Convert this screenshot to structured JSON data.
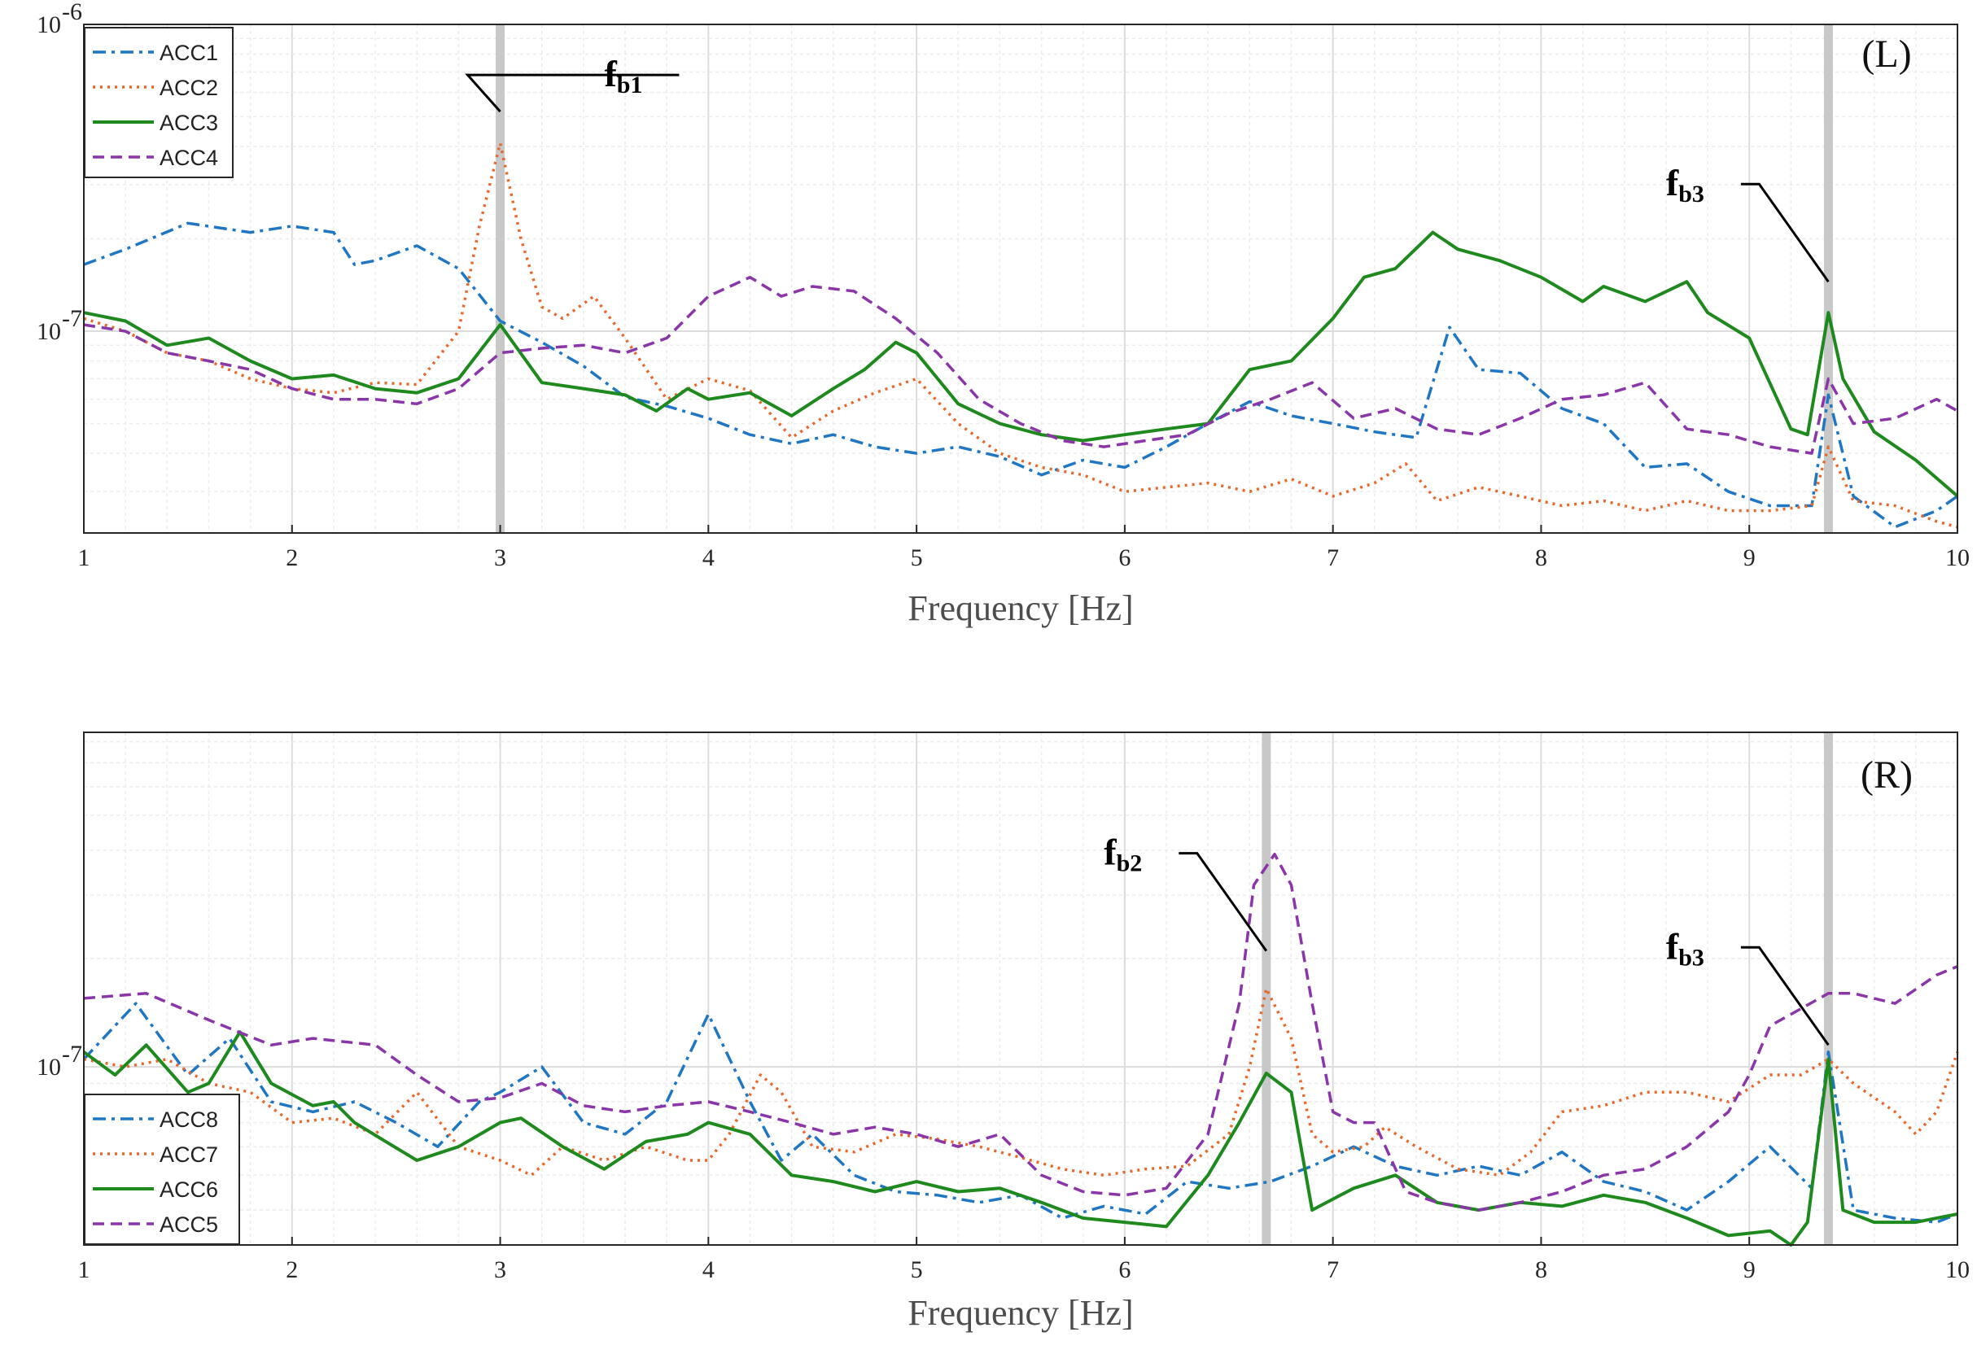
{
  "colors": {
    "blue": "#1f77c4",
    "orange": "#e8672a",
    "green": "#1e8a1e",
    "purple": "#8a35a8",
    "grid_major": "#dcdcdc",
    "grid_minor": "#ececec",
    "marker": "#c8c8c8",
    "axis": "#262626"
  },
  "chart_data": [
    {
      "type": "line",
      "panel": "top",
      "label": "(L)",
      "xlabel": "Frequency [Hz]",
      "ylabel": "",
      "xlim": [
        1,
        10
      ],
      "ylim": [
        2.2e-08,
        1e-06
      ],
      "yscale": "log",
      "xticks": [
        "1",
        "2",
        "3",
        "4",
        "5",
        "6",
        "7",
        "8",
        "9",
        "10"
      ],
      "yticks": [
        {
          "base": "10",
          "exp": "-6"
        },
        {
          "base": "10",
          "exp": "-7"
        }
      ],
      "legend": [
        "ACC1",
        "ACC2",
        "ACC3",
        "ACC4"
      ],
      "markers": [
        3.0,
        9.38
      ],
      "annotations": [
        {
          "main": "f",
          "sub": "b1",
          "x": 3.0,
          "y": 5.2e-07,
          "text_x": 3.5
        },
        {
          "main": "f",
          "sub": "b3",
          "x": 9.38,
          "y": 1.45e-07,
          "text_x": 8.6
        }
      ],
      "series": [
        {
          "name": "ACC1",
          "color_key": "blue",
          "dash": "16 7 4 7",
          "x": [
            1.0,
            1.2,
            1.5,
            1.8,
            2.0,
            2.2,
            2.3,
            2.4,
            2.6,
            2.8,
            3.0,
            3.2,
            3.4,
            3.6,
            3.8,
            4.0,
            4.2,
            4.4,
            4.6,
            4.8,
            5.0,
            5.2,
            5.4,
            5.6,
            5.8,
            6.0,
            6.2,
            6.4,
            6.6,
            6.8,
            7.0,
            7.2,
            7.4,
            7.56,
            7.7,
            7.9,
            8.1,
            8.3,
            8.5,
            8.7,
            8.9,
            9.1,
            9.3,
            9.38,
            9.5,
            9.7,
            9.9,
            10.0
          ],
          "y": [
            1.65e-07,
            1.85e-07,
            2.25e-07,
            2.1e-07,
            2.2e-07,
            2.1e-07,
            1.65e-07,
            1.7e-07,
            1.9e-07,
            1.6e-07,
            1.08e-07,
            9.2e-08,
            7.7e-08,
            6.1e-08,
            5.7e-08,
            5.2e-08,
            4.6e-08,
            4.3e-08,
            4.6e-08,
            4.2e-08,
            4e-08,
            4.2e-08,
            3.9e-08,
            3.4e-08,
            3.8e-08,
            3.6e-08,
            4.2e-08,
            5e-08,
            5.9e-08,
            5.3e-08,
            5e-08,
            4.7e-08,
            4.5e-08,
            1.03e-07,
            7.5e-08,
            7.3e-08,
            5.6e-08,
            5e-08,
            3.6e-08,
            3.7e-08,
            3e-08,
            2.7e-08,
            2.7e-08,
            6.2e-08,
            2.9e-08,
            2.3e-08,
            2.6e-08,
            2.9e-08
          ]
        },
        {
          "name": "ACC2",
          "color_key": "orange",
          "dash": "3 6",
          "x": [
            1.0,
            1.2,
            1.4,
            1.6,
            1.8,
            2.0,
            2.2,
            2.4,
            2.6,
            2.8,
            2.9,
            3.0,
            3.1,
            3.2,
            3.3,
            3.45,
            3.6,
            3.8,
            4.0,
            4.2,
            4.4,
            4.6,
            4.8,
            5.0,
            5.2,
            5.4,
            5.6,
            5.8,
            6.0,
            6.2,
            6.4,
            6.6,
            6.8,
            7.0,
            7.2,
            7.35,
            7.5,
            7.7,
            7.9,
            8.1,
            8.3,
            8.5,
            8.7,
            8.9,
            9.1,
            9.3,
            9.38,
            9.5,
            9.7,
            9.9,
            10.0
          ],
          "y": [
            1.1e-07,
            1e-07,
            8.5e-08,
            8e-08,
            7e-08,
            6.5e-08,
            6.3e-08,
            6.8e-08,
            6.7e-08,
            1e-07,
            2.2e-07,
            4.1e-07,
            2e-07,
            1.2e-07,
            1.1e-07,
            1.3e-07,
            9.5e-08,
            6e-08,
            7e-08,
            6.4e-08,
            4.5e-08,
            5.5e-08,
            6.3e-08,
            7e-08,
            5e-08,
            4e-08,
            3.6e-08,
            3.4e-08,
            3e-08,
            3.1e-08,
            3.2e-08,
            3e-08,
            3.3e-08,
            2.9e-08,
            3.2e-08,
            3.7e-08,
            2.8e-08,
            3.1e-08,
            2.9e-08,
            2.7e-08,
            2.8e-08,
            2.6e-08,
            2.8e-08,
            2.6e-08,
            2.6e-08,
            2.7e-08,
            4.2e-08,
            2.8e-08,
            2.7e-08,
            2.4e-08,
            2.3e-08
          ]
        },
        {
          "name": "ACC3",
          "color_key": "green",
          "dash": "",
          "x": [
            1.0,
            1.2,
            1.4,
            1.6,
            1.8,
            2.0,
            2.2,
            2.4,
            2.6,
            2.8,
            3.0,
            3.2,
            3.4,
            3.6,
            3.75,
            3.9,
            4.0,
            4.2,
            4.4,
            4.6,
            4.75,
            4.9,
            5.0,
            5.2,
            5.4,
            5.6,
            5.8,
            6.0,
            6.2,
            6.4,
            6.6,
            6.8,
            7.0,
            7.15,
            7.3,
            7.48,
            7.6,
            7.8,
            8.0,
            8.2,
            8.3,
            8.5,
            8.7,
            8.8,
            9.0,
            9.2,
            9.28,
            9.38,
            9.45,
            9.6,
            9.8,
            10.0
          ],
          "y": [
            1.15e-07,
            1.08e-07,
            9e-08,
            9.5e-08,
            8e-08,
            7e-08,
            7.2e-08,
            6.5e-08,
            6.3e-08,
            7e-08,
            1.05e-07,
            6.8e-08,
            6.5e-08,
            6.2e-08,
            5.5e-08,
            6.5e-08,
            6e-08,
            6.3e-08,
            5.3e-08,
            6.5e-08,
            7.5e-08,
            9.2e-08,
            8.5e-08,
            5.8e-08,
            5e-08,
            4.6e-08,
            4.4e-08,
            4.6e-08,
            4.8e-08,
            5e-08,
            7.5e-08,
            8e-08,
            1.1e-07,
            1.5e-07,
            1.6e-07,
            2.1e-07,
            1.85e-07,
            1.7e-07,
            1.5e-07,
            1.25e-07,
            1.4e-07,
            1.25e-07,
            1.45e-07,
            1.15e-07,
            9.5e-08,
            4.8e-08,
            4.6e-08,
            1.15e-07,
            7e-08,
            4.7e-08,
            3.8e-08,
            2.9e-08
          ]
        },
        {
          "name": "ACC4",
          "color_key": "purple",
          "dash": "14 8",
          "x": [
            1.0,
            1.2,
            1.4,
            1.6,
            1.8,
            2.0,
            2.2,
            2.4,
            2.6,
            2.8,
            3.0,
            3.2,
            3.4,
            3.6,
            3.8,
            4.0,
            4.2,
            4.35,
            4.5,
            4.7,
            4.9,
            5.1,
            5.3,
            5.5,
            5.7,
            5.9,
            6.1,
            6.3,
            6.5,
            6.7,
            6.9,
            7.1,
            7.3,
            7.5,
            7.7,
            7.9,
            8.1,
            8.3,
            8.5,
            8.7,
            8.9,
            9.1,
            9.3,
            9.38,
            9.5,
            9.7,
            9.9,
            10.0
          ],
          "y": [
            1.05e-07,
            1e-07,
            8.5e-08,
            8e-08,
            7.5e-08,
            6.5e-08,
            6e-08,
            6e-08,
            5.8e-08,
            6.5e-08,
            8.5e-08,
            8.8e-08,
            9e-08,
            8.5e-08,
            9.5e-08,
            1.3e-07,
            1.5e-07,
            1.3e-07,
            1.4e-07,
            1.35e-07,
            1.1e-07,
            8.5e-08,
            6e-08,
            5e-08,
            4.4e-08,
            4.2e-08,
            4.4e-08,
            4.6e-08,
            5.4e-08,
            6e-08,
            6.8e-08,
            5.2e-08,
            5.6e-08,
            4.8e-08,
            4.6e-08,
            5.2e-08,
            6e-08,
            6.2e-08,
            6.8e-08,
            4.8e-08,
            4.6e-08,
            4.2e-08,
            4e-08,
            7e-08,
            5e-08,
            5.2e-08,
            6e-08,
            5.5e-08
          ]
        }
      ]
    },
    {
      "type": "line",
      "panel": "bottom",
      "label": "(R)",
      "xlabel": "Frequency [Hz]",
      "ylabel": "",
      "xlim": [
        1,
        10
      ],
      "ylim": [
        3.2e-08,
        8.5e-07
      ],
      "yscale": "log",
      "xticks": [
        "1",
        "2",
        "3",
        "4",
        "5",
        "6",
        "7",
        "8",
        "9",
        "10"
      ],
      "yticks": [
        {
          "base": "10",
          "exp": "-7"
        }
      ],
      "legend": [
        "ACC8",
        "ACC7",
        "ACC6",
        "ACC5"
      ],
      "markers": [
        6.68,
        9.38
      ],
      "annotations": [
        {
          "main": "f",
          "sub": "b2",
          "x": 6.68,
          "y": 2.1e-07,
          "text_x": 5.9
        },
        {
          "main": "f",
          "sub": "b3",
          "x": 9.38,
          "y": 1.15e-07,
          "text_x": 8.6
        }
      ],
      "series": [
        {
          "name": "ACC8",
          "color_key": "blue",
          "dash": "16 7 4 7",
          "x": [
            1.0,
            1.25,
            1.5,
            1.7,
            1.9,
            2.1,
            2.3,
            2.5,
            2.7,
            2.9,
            3.0,
            3.2,
            3.4,
            3.6,
            3.8,
            4.0,
            4.2,
            4.35,
            4.5,
            4.7,
            4.9,
            5.1,
            5.3,
            5.5,
            5.7,
            5.9,
            6.1,
            6.3,
            6.5,
            6.7,
            6.9,
            7.1,
            7.3,
            7.5,
            7.7,
            7.9,
            8.1,
            8.3,
            8.5,
            8.7,
            8.9,
            9.1,
            9.3,
            9.38,
            9.5,
            9.7,
            9.9,
            10.0
          ],
          "y": [
            1.05e-07,
            1.5e-07,
            9.5e-08,
            1.2e-07,
            8e-08,
            7.5e-08,
            8e-08,
            7e-08,
            6e-08,
            8e-08,
            8.5e-08,
            1e-07,
            7e-08,
            6.5e-08,
            8e-08,
            1.4e-07,
            8e-08,
            5.5e-08,
            6.5e-08,
            5e-08,
            4.5e-08,
            4.4e-08,
            4.2e-08,
            4.4e-08,
            3.8e-08,
            4.1e-08,
            3.9e-08,
            4.8e-08,
            4.6e-08,
            4.8e-08,
            5.3e-08,
            6e-08,
            5.3e-08,
            5e-08,
            5.3e-08,
            5e-08,
            5.8e-08,
            4.8e-08,
            4.5e-08,
            4e-08,
            4.8e-08,
            6e-08,
            4.6e-08,
            1.1e-07,
            4e-08,
            3.8e-08,
            3.7e-08,
            3.9e-08
          ]
        },
        {
          "name": "ACC7",
          "color_key": "orange",
          "dash": "3 6",
          "x": [
            1.0,
            1.2,
            1.4,
            1.6,
            1.8,
            2.0,
            2.2,
            2.4,
            2.6,
            2.8,
            3.0,
            3.15,
            3.3,
            3.5,
            3.7,
            3.9,
            4.0,
            4.1,
            4.25,
            4.35,
            4.5,
            4.7,
            4.9,
            5.1,
            5.3,
            5.5,
            5.7,
            5.9,
            6.1,
            6.3,
            6.5,
            6.6,
            6.68,
            6.8,
            6.9,
            7.0,
            7.15,
            7.25,
            7.4,
            7.6,
            7.8,
            7.95,
            8.1,
            8.3,
            8.5,
            8.7,
            8.9,
            9.1,
            9.25,
            9.38,
            9.5,
            9.7,
            9.8,
            9.9,
            10.0
          ],
          "y": [
            1.05e-07,
            1e-07,
            1.05e-07,
            9e-08,
            8.5e-08,
            7e-08,
            7.2e-08,
            6.5e-08,
            8.5e-08,
            6e-08,
            5.5e-08,
            5e-08,
            6e-08,
            5.5e-08,
            6e-08,
            5.5e-08,
            5.5e-08,
            6.5e-08,
            9.5e-08,
            8.5e-08,
            6e-08,
            5.8e-08,
            6.5e-08,
            6.3e-08,
            6e-08,
            5.6e-08,
            5.2e-08,
            5e-08,
            5.2e-08,
            5.3e-08,
            6.5e-08,
            1e-07,
            1.65e-07,
            1.2e-07,
            6.5e-08,
            5.8e-08,
            6e-08,
            6.8e-08,
            6e-08,
            5.2e-08,
            5e-08,
            5.8e-08,
            7.5e-08,
            7.8e-08,
            8.5e-08,
            8.5e-08,
            8e-08,
            9.5e-08,
            9.5e-08,
            1.05e-07,
            9e-08,
            7.5e-08,
            6.5e-08,
            7.5e-08,
            1.1e-07
          ]
        },
        {
          "name": "ACC6",
          "color_key": "green",
          "dash": "",
          "x": [
            1.0,
            1.15,
            1.3,
            1.5,
            1.6,
            1.75,
            1.9,
            2.1,
            2.2,
            2.3,
            2.45,
            2.6,
            2.8,
            3.0,
            3.1,
            3.3,
            3.5,
            3.7,
            3.9,
            4.0,
            4.2,
            4.4,
            4.6,
            4.8,
            5.0,
            5.2,
            5.4,
            5.6,
            5.8,
            6.0,
            6.2,
            6.4,
            6.55,
            6.68,
            6.8,
            6.9,
            7.1,
            7.3,
            7.5,
            7.7,
            7.9,
            8.1,
            8.3,
            8.5,
            8.7,
            8.9,
            9.1,
            9.2,
            9.28,
            9.38,
            9.45,
            9.6,
            9.8,
            10.0
          ],
          "y": [
            1.1e-07,
            9.5e-08,
            1.15e-07,
            8.5e-08,
            9e-08,
            1.25e-07,
            9e-08,
            7.8e-08,
            8e-08,
            7e-08,
            6.2e-08,
            5.5e-08,
            6e-08,
            7e-08,
            7.2e-08,
            6e-08,
            5.2e-08,
            6.2e-08,
            6.5e-08,
            7e-08,
            6.5e-08,
            5e-08,
            4.8e-08,
            4.5e-08,
            4.8e-08,
            4.5e-08,
            4.6e-08,
            4.2e-08,
            3.8e-08,
            3.7e-08,
            3.6e-08,
            5e-08,
            7e-08,
            9.6e-08,
            8.5e-08,
            4e-08,
            4.6e-08,
            5e-08,
            4.2e-08,
            4e-08,
            4.2e-08,
            4.1e-08,
            4.4e-08,
            4.2e-08,
            3.8e-08,
            3.4e-08,
            3.5e-08,
            3.2e-08,
            3.7e-08,
            1.05e-07,
            4e-08,
            3.7e-08,
            3.7e-08,
            3.9e-08
          ]
        },
        {
          "name": "ACC5",
          "color_key": "purple",
          "dash": "14 8",
          "x": [
            1.0,
            1.3,
            1.6,
            1.9,
            2.1,
            2.4,
            2.6,
            2.8,
            3.0,
            3.2,
            3.4,
            3.6,
            3.8,
            4.0,
            4.2,
            4.4,
            4.6,
            4.8,
            5.0,
            5.2,
            5.4,
            5.6,
            5.8,
            6.0,
            6.2,
            6.4,
            6.55,
            6.62,
            6.72,
            6.8,
            6.9,
            7.0,
            7.1,
            7.2,
            7.35,
            7.5,
            7.7,
            7.9,
            8.1,
            8.3,
            8.5,
            8.7,
            8.9,
            9.0,
            9.1,
            9.2,
            9.38,
            9.5,
            9.7,
            9.9,
            10.0
          ],
          "y": [
            1.55e-07,
            1.6e-07,
            1.35e-07,
            1.15e-07,
            1.2e-07,
            1.15e-07,
            9.5e-08,
            8e-08,
            8.2e-08,
            9e-08,
            7.8e-08,
            7.5e-08,
            7.8e-08,
            8e-08,
            7.5e-08,
            7e-08,
            6.5e-08,
            6.8e-08,
            6.5e-08,
            6e-08,
            6.5e-08,
            5e-08,
            4.5e-08,
            4.4e-08,
            4.6e-08,
            6.5e-08,
            1.5e-07,
            3.2e-07,
            3.9e-07,
            3.2e-07,
            1.5e-07,
            7.5e-08,
            7e-08,
            7e-08,
            4.5e-08,
            4.2e-08,
            4e-08,
            4.2e-08,
            4.5e-08,
            5e-08,
            5.2e-08,
            6e-08,
            7.5e-08,
            9.5e-08,
            1.3e-07,
            1.4e-07,
            1.6e-07,
            1.6e-07,
            1.5e-07,
            1.8e-07,
            1.9e-07
          ]
        }
      ]
    }
  ]
}
